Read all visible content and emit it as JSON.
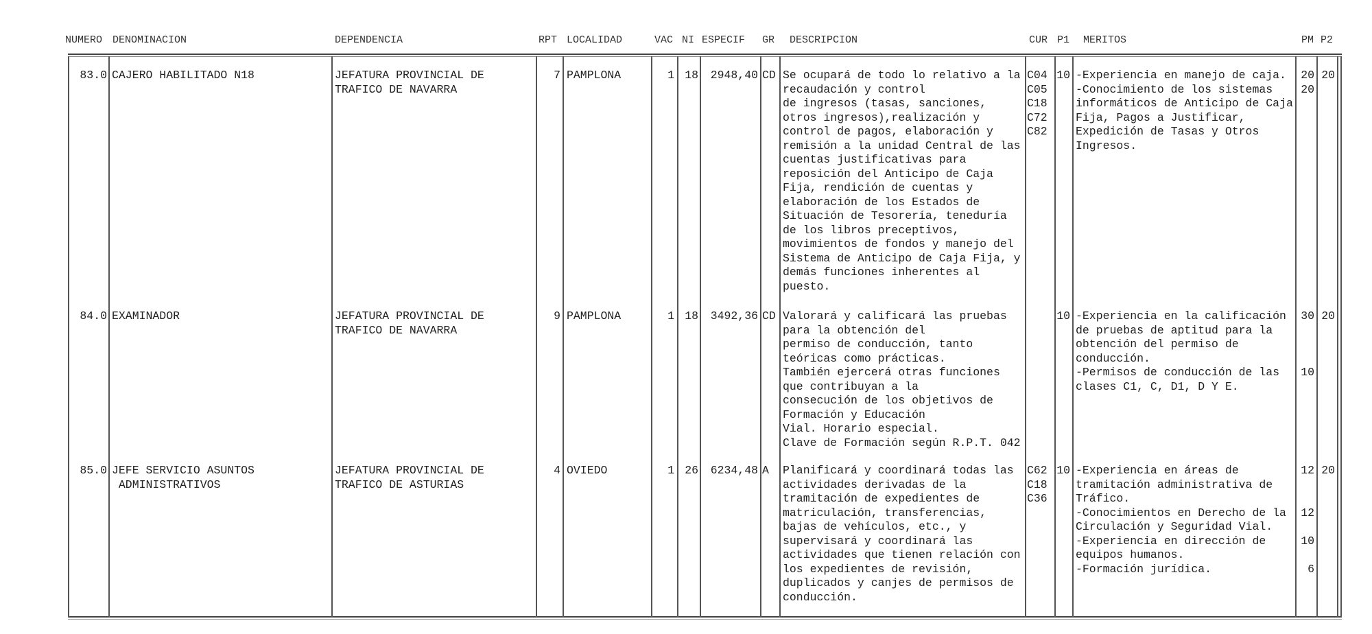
{
  "headers": {
    "numero": "NUMERO",
    "denominacion": "DENOMINACION",
    "dependencia": "DEPENDENCIA",
    "rpt": "RPT",
    "localidad": "LOCALIDAD",
    "vac": "VAC",
    "ni": "NI",
    "especif": "ESPECIF",
    "gr": "GR",
    "descripcion": "DESCRIPCION",
    "cur": "CUR",
    "p1": "P1",
    "meritos": "MERITOS",
    "pm": "PM",
    "p2": "P2"
  },
  "rows": [
    {
      "numero": "83.0",
      "denominacion": [
        "CAJERO HABILITADO N18"
      ],
      "dependencia": [
        "JEFATURA PROVINCIAL DE",
        "TRAFICO DE NAVARRA"
      ],
      "rpt": "7",
      "localidad": "PAMPLONA",
      "vac": "1",
      "ni": "18",
      "especif": "2948,40",
      "gr": "CD",
      "descripcion": [
        "Se ocupará de todo lo relativo a la",
        "recaudación y control",
        "de ingresos (tasas, sanciones,",
        "otros ingresos),realización y",
        "control de pagos, elaboración y",
        "remisión a la unidad Central de las",
        "cuentas justificativas para",
        "reposición del Anticipo de Caja",
        "Fija, rendición de cuentas y",
        "elaboración de los Estados de",
        "Situación de Tesorería, teneduría",
        "de los libros preceptivos,",
        "movimientos de fondos y manejo del",
        "Sistema de Anticipo de Caja Fija, y",
        "demás funciones inherentes al",
        "puesto."
      ],
      "cur": [
        "C04",
        "C05",
        "C18",
        "C72",
        "C82"
      ],
      "p1": "10",
      "meritos": [
        "-Experiencia en manejo de caja.",
        "-Conocimiento de los sistemas",
        "informáticos de Anticipo de Caja",
        "Fija, Pagos a Justificar,",
        "Expedición de Tasas y Otros",
        "Ingresos."
      ],
      "pm": [
        "20",
        "20"
      ],
      "p2": "20"
    },
    {
      "numero": "84.0",
      "denominacion": [
        "EXAMINADOR"
      ],
      "dependencia": [
        "JEFATURA PROVINCIAL DE",
        "TRAFICO DE NAVARRA"
      ],
      "rpt": "9",
      "localidad": "PAMPLONA",
      "vac": "1",
      "ni": "18",
      "especif": "3492,36",
      "gr": "CD",
      "descripcion": [
        "Valorará y calificará las pruebas",
        "para la obtención del",
        "permiso de conducción, tanto",
        "teóricas como prácticas.",
        "También ejercerá otras funciones",
        "que contribuyan a la",
        "consecución de los objetivos de",
        "Formación y Educación",
        "Vial. Horario especial.",
        "Clave de Formación según R.P.T. 042"
      ],
      "cur": [],
      "p1": "10",
      "meritos": [
        "-Experiencia en la calificación",
        "de pruebas de aptitud para la",
        "obtención del permiso de",
        "conducción.",
        "-Permisos de conducción de las",
        "clases C1, C, D1, D Y E."
      ],
      "pm": [
        "30",
        "",
        "",
        "",
        "10"
      ],
      "p2": "20"
    },
    {
      "numero": "85.0",
      "denominacion": [
        "JEFE SERVICIO ASUNTOS",
        " ADMINISTRATIVOS"
      ],
      "dependencia": [
        "JEFATURA PROVINCIAL DE",
        "TRAFICO DE ASTURIAS"
      ],
      "rpt": "4",
      "localidad": "OVIEDO",
      "vac": "1",
      "ni": "26",
      "especif": "6234,48",
      "gr": "A",
      "descripcion": [
        "Planificará y coordinará todas las",
        "actividades derivadas de la",
        "tramitación de expedientes de",
        "matriculación, transferencias,",
        "bajas de vehículos, etc., y",
        "supervisará y coordinará las",
        "actividades que tienen relación con",
        "los expedientes de revisión,",
        "duplicados y canjes de permisos de",
        "conducción."
      ],
      "cur": [
        "C62",
        "C18",
        "C36"
      ],
      "p1": "10",
      "meritos": [
        "-Experiencia en áreas de",
        "tramitación administrativa de",
        "Tráfico.",
        "-Conocimientos en Derecho de la",
        "Circulación y Seguridad Vial.",
        "-Experiencia en dirección de",
        "equipos humanos.",
        "-Formación jurídica."
      ],
      "pm": [
        "12",
        "",
        "",
        "12",
        "",
        "10",
        "",
        "6"
      ],
      "p2": "20"
    }
  ]
}
